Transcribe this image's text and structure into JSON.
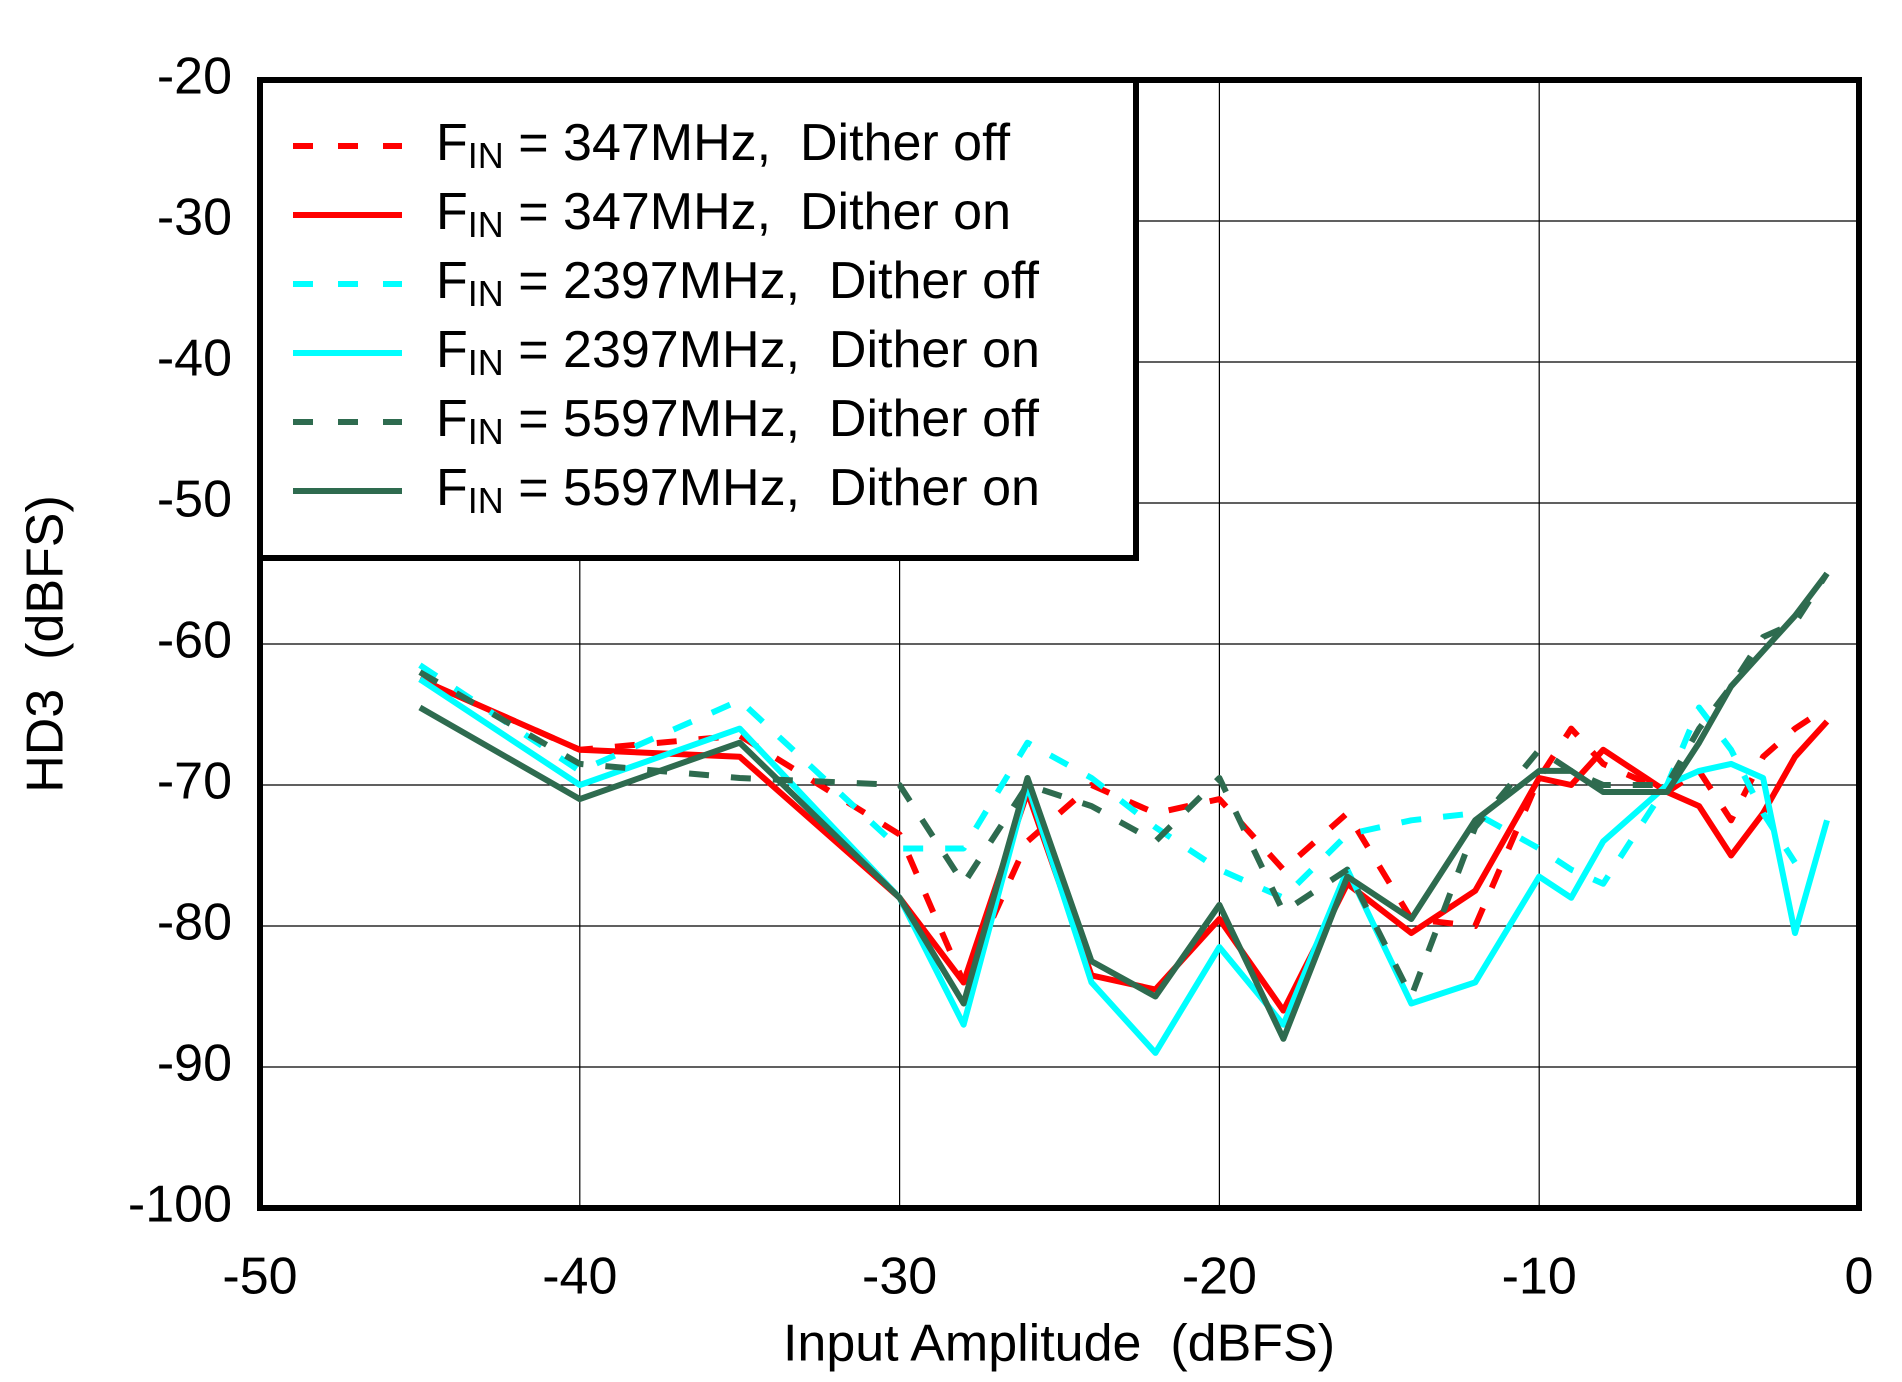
{
  "chart_data": {
    "type": "line",
    "xlabel": "Input Amplitude  (dBFS)",
    "ylabel": "HD3  (dBFS)",
    "x": [
      -45,
      -40,
      -35,
      -30,
      -28,
      -26,
      -24,
      -22,
      -20,
      -18,
      -16,
      -14,
      -12,
      -10,
      -9,
      -8,
      -6,
      -5,
      -4,
      -3,
      -2,
      -1
    ],
    "series": [
      {
        "name": "FIN = 347MHz,  Dither off",
        "color": "#ff0000",
        "dash": true,
        "values": [
          -62.5,
          -67.5,
          -66.5,
          -73.5,
          -84,
          -74,
          -70,
          -72,
          -71,
          -76,
          -72,
          -79.5,
          -80,
          -69.5,
          -66,
          -68.5,
          -70.5,
          -69,
          -72.5,
          -68,
          -66,
          -64.5
        ]
      },
      {
        "name": "FIN = 347MHz,  Dither on",
        "color": "#ff0000",
        "dash": false,
        "values": [
          -62.5,
          -67.5,
          -68,
          -78,
          -84,
          -70.5,
          -83.5,
          -84.5,
          -79.5,
          -86,
          -77,
          -80.5,
          -77.5,
          -69.5,
          -70,
          -67.5,
          -70.5,
          -71.5,
          -75,
          -72,
          -68,
          -65.5
        ]
      },
      {
        "name": "FIN = 2397MHz,  Dither off",
        "color": "#00ffff",
        "dash": true,
        "values": [
          -61.5,
          -69,
          -64,
          -74.5,
          -74.5,
          -67,
          -69.5,
          -73,
          -76,
          -78,
          -73.5,
          -72.5,
          -72,
          -74.5,
          -76,
          -77,
          -70,
          -64.5,
          -67.5,
          -72,
          -75.5,
          null
        ]
      },
      {
        "name": "FIN = 2397MHz,  Dither on",
        "color": "#00ffff",
        "dash": false,
        "values": [
          -62.5,
          -70,
          -66,
          -78,
          -87,
          -70,
          -84,
          -89,
          -81.5,
          -87,
          -76,
          -85.5,
          -84,
          -76.5,
          -78,
          -74,
          -70,
          -69,
          -68.5,
          -69.5,
          -80.5,
          -72.5
        ]
      },
      {
        "name": "FIN = 5597MHz,  Dither off",
        "color": "#2e6b4f",
        "dash": true,
        "values": [
          -62,
          -68.5,
          -69.5,
          -70,
          -77,
          -70,
          -71.5,
          -74,
          -69.5,
          -79,
          -76,
          -85,
          -73,
          -67.5,
          -69,
          -70,
          -70,
          -66,
          -63,
          -59.5,
          -58.5,
          -55
        ]
      },
      {
        "name": "FIN = 5597MHz,  Dither on",
        "color": "#2e6b4f",
        "dash": false,
        "values": [
          -64.5,
          -71,
          -67,
          -78,
          -85.5,
          -69.5,
          -82.5,
          -85,
          -78.5,
          -88,
          -76.5,
          -79.5,
          -72.5,
          -69,
          -69,
          -70.5,
          -70.5,
          -67,
          -63,
          -60.5,
          -58,
          -55
        ]
      }
    ],
    "xlim": [
      -50,
      0
    ],
    "xticks": [
      -50,
      -40,
      -30,
      -20,
      -10,
      0
    ],
    "ylim": [
      -100,
      -20
    ],
    "yticks": [
      -100,
      -90,
      -80,
      -70,
      -60,
      -50,
      -40,
      -30,
      -20
    ],
    "grid": true,
    "legend": "upper left"
  }
}
